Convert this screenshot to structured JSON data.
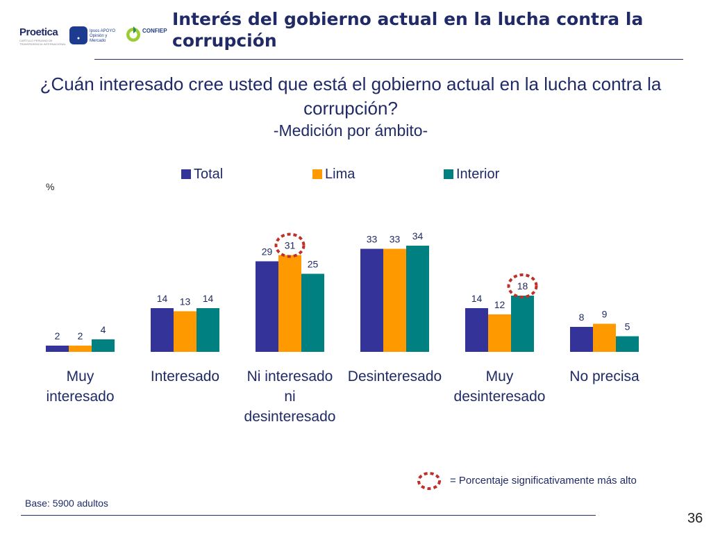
{
  "header": {
    "title": "Interés del gobierno actual en la lucha contra la corrupción",
    "logos": [
      {
        "name": "Proetica",
        "text": "Proetica",
        "sub": "CAPÍTULO PERUANO DE TRANSPARENCIA INTERNACIONAL"
      },
      {
        "name": "Ipsos APOYO",
        "text": "Ipsos APOYO",
        "sub": "Opinión y Mercado"
      },
      {
        "name": "CONFIEP",
        "text": "CONFIEP"
      }
    ]
  },
  "question": "¿Cuán interesado cree usted que está el gobierno actual en la lucha contra la corrupción?",
  "subtitle": "-Medición por ámbito-",
  "unit_label": "%",
  "note": {
    "text": "= Porcentaje significativamente más alto",
    "marker_color": "#c0302a"
  },
  "base_text": "Base: 5900 adultos",
  "page_number": "36",
  "colors": {
    "title": "#1f2a66",
    "text": "#1f2a66"
  },
  "chart_data": {
    "type": "bar",
    "title": "¿Cuán interesado cree usted que está el gobierno actual en la lucha contra la corrupción?",
    "subtitle": "-Medición por ámbito-",
    "ylabel": "%",
    "ylim": [
      0,
      40
    ],
    "grid": false,
    "legend_position": "top",
    "categories": [
      "Muy interesado",
      "Interesado",
      "Ni interesado ni desinteresado",
      "Desinteresado",
      "Muy desinteresado",
      "No precisa"
    ],
    "category_display": [
      "Muy\ninteresado",
      "Interesado",
      "Ni interesado\nni\ndesinteresado",
      "Desinteresado",
      "Muy\ndesinteresado",
      "No precisa"
    ],
    "series": [
      {
        "name": "Total",
        "color": "#333399",
        "values": [
          2,
          14,
          29,
          33,
          14,
          8
        ]
      },
      {
        "name": "Lima",
        "color": "#ff9900",
        "values": [
          2,
          13,
          31,
          33,
          12,
          9
        ]
      },
      {
        "name": "Interior",
        "color": "#008080",
        "values": [
          4,
          14,
          25,
          34,
          18,
          5
        ]
      }
    ],
    "highlighted": [
      {
        "category": "Ni interesado ni desinteresado",
        "series": "Lima"
      },
      {
        "category": "Muy desinteresado",
        "series": "Interior"
      }
    ]
  }
}
